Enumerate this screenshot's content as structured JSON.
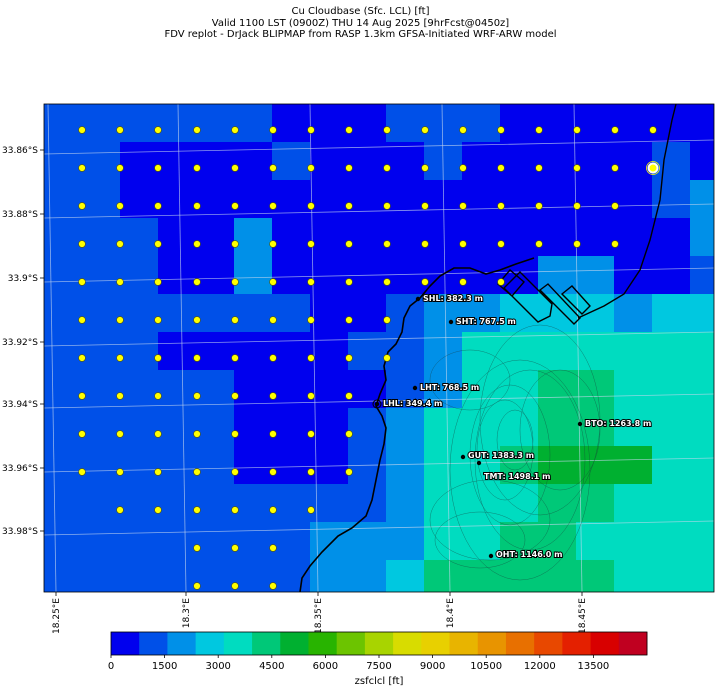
{
  "title": {
    "line1": "Cu Cloudbase (Sfc. LCL) [ft]",
    "line2": "Valid 1100 LST (0900Z) THU 14 Aug 2025 [9hrFcst@0450z]",
    "line3": "FDV replot - DrJack BLIPMAP from RASP 1.3km GFSA-Initiated WRF-ARW model"
  },
  "chart_data": {
    "type": "heatmap",
    "variable": "zsfclcl",
    "units": "ft",
    "lat_ticks": [
      "33.86°S",
      "33.88°S",
      "33.9°S",
      "33.92°S",
      "33.94°S",
      "33.96°S",
      "33.98°S"
    ],
    "lon_ticks": [
      "18.25°E",
      "18.3°E",
      "18.35°E",
      "18.4°E",
      "18.45°E"
    ],
    "colorbar": {
      "label": "zsfclcl [ft]",
      "tick_labels": [
        "0",
        "1500",
        "3000",
        "4500",
        "6000",
        "7500",
        "9000",
        "10500",
        "12000",
        "13500"
      ],
      "colors": [
        "#0000ee",
        "#0050e8",
        "#0090e8",
        "#00c8e0",
        "#00dcc0",
        "#00c878",
        "#00b030",
        "#28b400",
        "#6cc400",
        "#a8d400",
        "#d8dc00",
        "#e8d000",
        "#e8b400",
        "#e89400",
        "#e87000",
        "#e84800",
        "#e42000",
        "#d80000",
        "#c00020"
      ]
    },
    "stations": [
      {
        "code": "SHL",
        "label": "SHL: 382.3 m"
      },
      {
        "code": "SHT",
        "label": "SHT: 767.5 m"
      },
      {
        "code": "LHT",
        "label": "LHT: 768.5 m"
      },
      {
        "code": "LHL",
        "label": "LHL: 349.4 m"
      },
      {
        "code": "BTO",
        "label": "BTO: 1263.8 m"
      },
      {
        "code": "GUT",
        "label": "GUT: 1383.3 m"
      },
      {
        "code": "TMT",
        "label": "TMT: 1498.1 m"
      },
      {
        "code": "OHT",
        "label": "OHT: 1146.0 m"
      }
    ],
    "grid_on": true
  }
}
